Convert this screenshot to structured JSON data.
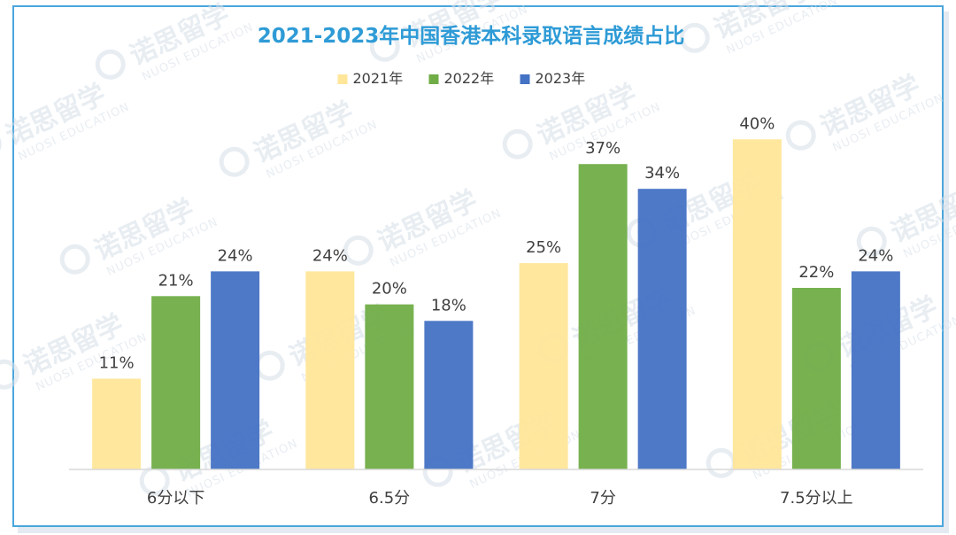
{
  "watermark": {
    "cn": "诺思留学",
    "en": "NUOSI EDUCATION"
  },
  "chart_data": {
    "type": "bar",
    "title": "2021-2023年中国香港本科录取语言成绩占比",
    "categories": [
      "6分以下",
      "6.5分",
      "7分",
      "7.5分以上"
    ],
    "series": [
      {
        "name": "2021年",
        "values": [
          11,
          24,
          25,
          40
        ],
        "color": "#ffe699"
      },
      {
        "name": "2022年",
        "values": [
          21,
          20,
          37,
          22
        ],
        "color": "#70ad47"
      },
      {
        "name": "2023年",
        "values": [
          24,
          18,
          34,
          24
        ],
        "color": "#4472c4"
      }
    ],
    "value_suffix": "%",
    "ylim": [
      0,
      44
    ],
    "grid": false,
    "legend_position": "top",
    "title_color": "#2e9bd6"
  }
}
